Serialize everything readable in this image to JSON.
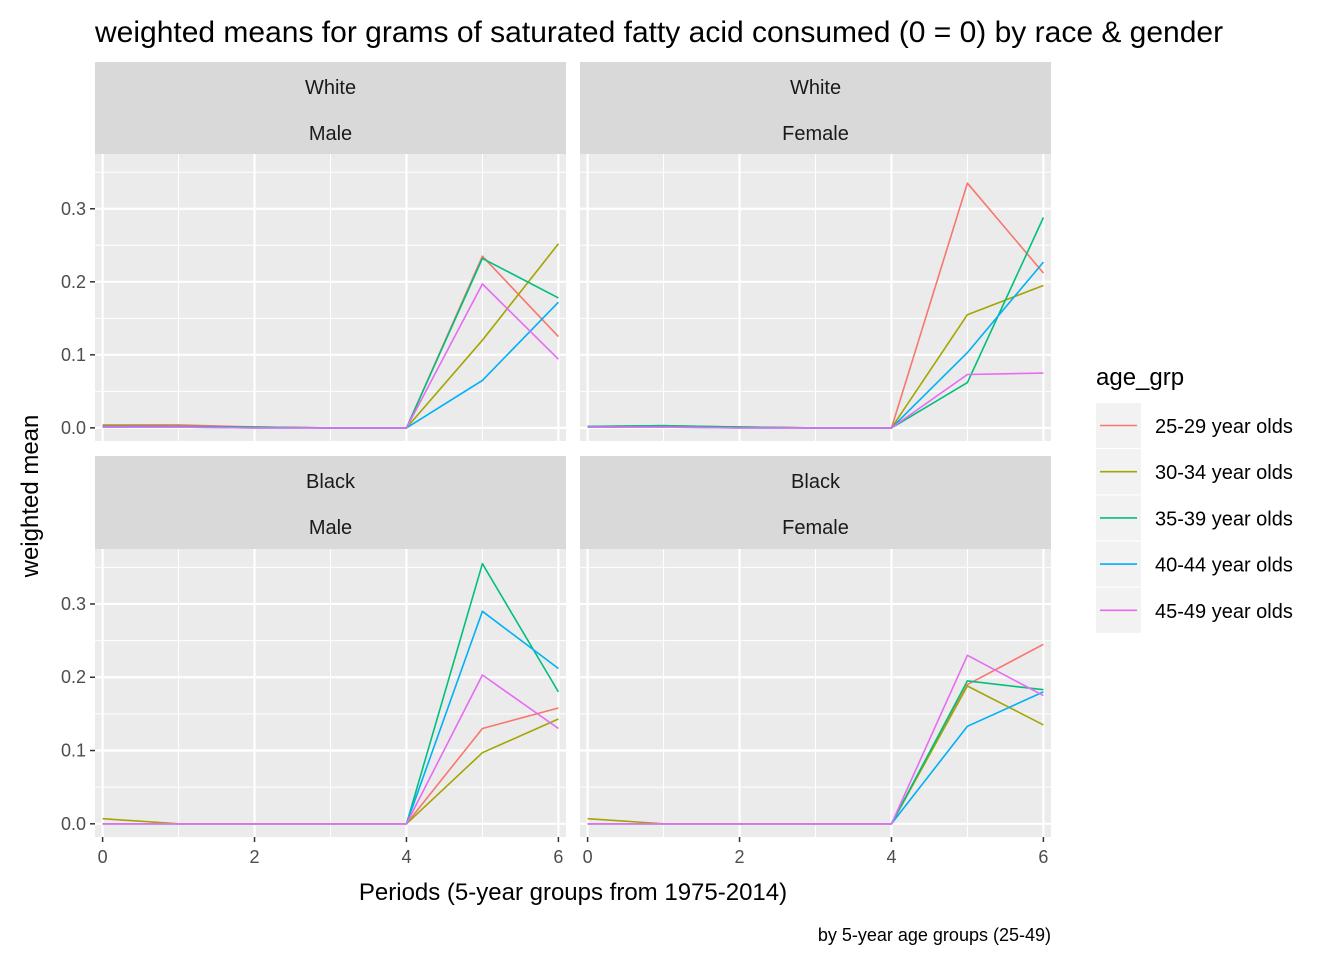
{
  "chart_data": {
    "type": "line",
    "title": "weighted means for grams of saturated fatty acid consumed (0 = 0) by race & gender",
    "xlabel": "Periods (5-year groups from 1975-2014)",
    "ylabel": "weighted mean",
    "caption": "by 5-year age groups (25-49)",
    "xlim": [
      -0.1,
      6.1
    ],
    "ylim": [
      -0.018,
      0.375
    ],
    "x_ticks": [
      0,
      2,
      4,
      6
    ],
    "y_ticks": [
      0.0,
      0.1,
      0.2,
      0.3
    ],
    "y_tick_labels": [
      "0.0",
      "0.1",
      "0.2",
      "0.3"
    ],
    "grid": true,
    "legend": {
      "title": "age_grp",
      "position": "right",
      "entries": [
        {
          "label": "25-29 year olds",
          "color": "#F8766D"
        },
        {
          "label": "30-34 year olds",
          "color": "#A3A500"
        },
        {
          "label": "35-39 year olds",
          "color": "#00BF7D"
        },
        {
          "label": "40-44 year olds",
          "color": "#00B0F6"
        },
        {
          "label": "45-49 year olds",
          "color": "#E76BF3"
        }
      ]
    },
    "x": [
      0,
      1,
      2,
      3,
      4,
      5,
      6
    ],
    "panels": [
      {
        "race": "White",
        "gender": "Male",
        "series": [
          {
            "name": "25-29 year olds",
            "values": [
              0.004,
              0.004,
              0.001,
              0,
              0,
              0.235,
              0.125
            ]
          },
          {
            "name": "30-34 year olds",
            "values": [
              0.003,
              0.002,
              0.001,
              0,
              0,
              0.12,
              0.252
            ]
          },
          {
            "name": "35-39 year olds",
            "values": [
              0.002,
              0.002,
              0.001,
              0,
              0,
              0.232,
              0.178
            ]
          },
          {
            "name": "40-44 year olds",
            "values": [
              0.001,
              0.001,
              0,
              0,
              0,
              0.065,
              0.172
            ]
          },
          {
            "name": "45-49 year olds",
            "values": [
              0.001,
              0.001,
              0,
              0,
              0,
              0.197,
              0.094
            ]
          }
        ]
      },
      {
        "race": "White",
        "gender": "Female",
        "series": [
          {
            "name": "25-29 year olds",
            "values": [
              0.001,
              0.002,
              0.001,
              0,
              0,
              0.335,
              0.212
            ]
          },
          {
            "name": "30-34 year olds",
            "values": [
              0.002,
              0.003,
              0.001,
              0,
              0,
              0.155,
              0.195
            ]
          },
          {
            "name": "35-39 year olds",
            "values": [
              0.002,
              0.003,
              0.001,
              0,
              0,
              0.062,
              0.288
            ]
          },
          {
            "name": "40-44 year olds",
            "values": [
              0.001,
              0.001,
              0,
              0,
              0,
              0.103,
              0.227
            ]
          },
          {
            "name": "45-49 year olds",
            "values": [
              0.001,
              0.001,
              0,
              0,
              0,
              0.073,
              0.075
            ]
          }
        ]
      },
      {
        "race": "Black",
        "gender": "Male",
        "series": [
          {
            "name": "25-29 year olds",
            "values": [
              0,
              0,
              0,
              0,
              0,
              0.13,
              0.158
            ]
          },
          {
            "name": "30-34 year olds",
            "values": [
              0.007,
              0,
              0,
              0,
              0,
              0.097,
              0.143
            ]
          },
          {
            "name": "35-39 year olds",
            "values": [
              0,
              0,
              0,
              0,
              0,
              0.355,
              0.18
            ]
          },
          {
            "name": "40-44 year olds",
            "values": [
              0,
              0,
              0,
              0,
              0,
              0.29,
              0.212
            ]
          },
          {
            "name": "45-49 year olds",
            "values": [
              0,
              0,
              0,
              0,
              0,
              0.203,
              0.13
            ]
          }
        ]
      },
      {
        "race": "Black",
        "gender": "Female",
        "series": [
          {
            "name": "25-29 year olds",
            "values": [
              0,
              0,
              0,
              0,
              0,
              0.19,
              0.245
            ]
          },
          {
            "name": "30-34 year olds",
            "values": [
              0.007,
              0,
              0,
              0,
              0,
              0.188,
              0.135
            ]
          },
          {
            "name": "35-39 year olds",
            "values": [
              0,
              0,
              0,
              0,
              0,
              0.195,
              0.183
            ]
          },
          {
            "name": "40-44 year olds",
            "values": [
              0,
              0,
              0,
              0,
              0,
              0.133,
              0.18
            ]
          },
          {
            "name": "45-49 year olds",
            "values": [
              0,
              0,
              0,
              0,
              0,
              0.23,
              0.175
            ]
          }
        ]
      }
    ]
  }
}
